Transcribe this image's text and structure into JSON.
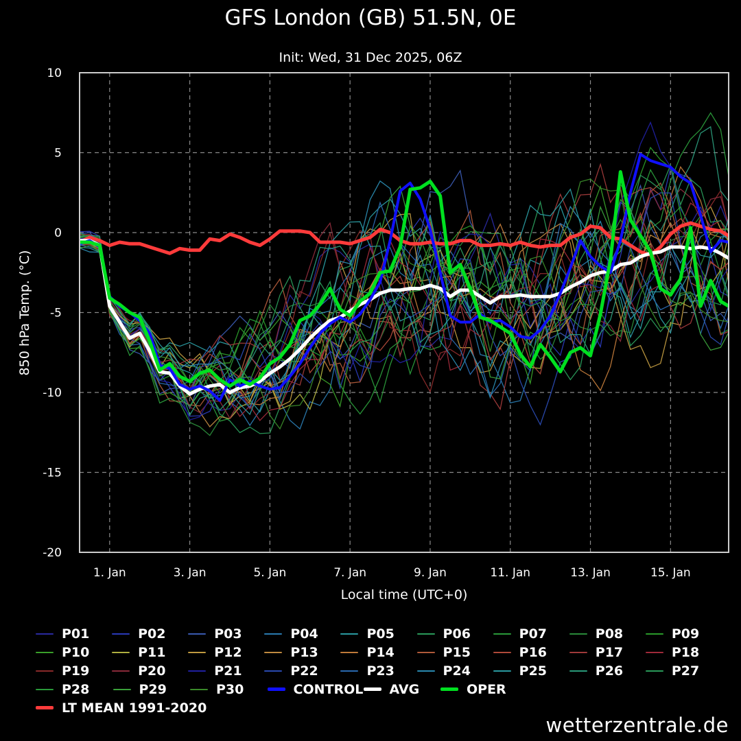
{
  "footer": {
    "site": "wetterzentrale.de"
  },
  "legend": {
    "rows": [
      [
        "P01",
        "P02",
        "P03",
        "P04",
        "P05",
        "P06",
        "P07",
        "P08",
        "P09"
      ],
      [
        "P10",
        "P11",
        "P12",
        "P13",
        "P14",
        "P15",
        "P16",
        "P17",
        "P18"
      ],
      [
        "P19",
        "P20",
        "P21",
        "P22",
        "P23",
        "P24",
        "P25",
        "P26",
        "P27"
      ],
      [
        "P28",
        "P29",
        "P30"
      ]
    ],
    "special": [
      {
        "label": "CONTROL",
        "color": "#1010ff"
      },
      {
        "label": "AVG",
        "color": "#ffffff"
      },
      {
        "label": "OPER",
        "color": "#00e020"
      },
      {
        "label": "LT MEAN 1991-2020",
        "color": "#ff3b3b"
      }
    ],
    "member_colors": {
      "P01": "#2a2aa0",
      "P02": "#2a3ab8",
      "P03": "#3a5ab0",
      "P04": "#2a7ab0",
      "P05": "#2a9aa0",
      "P06": "#2a9a5a",
      "P07": "#2a9a3a",
      "P08": "#2a8a3a",
      "P09": "#2a9a2a",
      "P10": "#3aa02a",
      "P11": "#b0b040",
      "P12": "#c09a40",
      "P13": "#c08a40",
      "P14": "#c07a3a",
      "P15": "#b05a3a",
      "P16": "#b04a3a",
      "P17": "#a03a3a",
      "P18": "#a02a3a",
      "P19": "#8a2a2a",
      "P20": "#8a2a3a",
      "P21": "#2020a0",
      "P22": "#2a4ab0",
      "P23": "#2a6ab0",
      "P24": "#2a8ab0",
      "P25": "#2a9aa0",
      "P26": "#2a9a7a",
      "P27": "#2a9a5a",
      "P28": "#2a9a3a",
      "P29": "#3aa03a",
      "P30": "#3a8a2a"
    }
  },
  "chart_data": {
    "type": "line",
    "title": "GFS London (GB) 51.5N, 0E",
    "subtitle": "Init: Wed, 31 Dec 2025, 06Z",
    "xlabel": "Local time (UTC+0)",
    "ylabel": "850 hPa Temp. (°C)",
    "x_unit": "days since 31 Dec 2025 00Z",
    "xlim": [
      0.25,
      16.45
    ],
    "ylim": [
      -20,
      10
    ],
    "yticks": [
      -20,
      -15,
      -10,
      -5,
      0,
      5,
      10
    ],
    "xticks": [
      {
        "x": 1,
        "label": "1. Jan"
      },
      {
        "x": 3,
        "label": "3. Jan"
      },
      {
        "x": 5,
        "label": "5. Jan"
      },
      {
        "x": 7,
        "label": "7. Jan"
      },
      {
        "x": 9,
        "label": "9. Jan"
      },
      {
        "x": 11,
        "label": "11. Jan"
      },
      {
        "x": 13,
        "label": "13. Jan"
      },
      {
        "x": 15,
        "label": "15. Jan"
      }
    ],
    "grid": true,
    "series": [
      {
        "name": "LT MEAN 1991-2020",
        "color": "#ff3b3b",
        "width": 5,
        "x": [
          0.25,
          0.5,
          0.75,
          1,
          1.25,
          1.5,
          1.75,
          2,
          2.25,
          2.5,
          2.75,
          3,
          3.25,
          3.5,
          3.75,
          4,
          4.25,
          4.5,
          4.75,
          5,
          5.25,
          5.5,
          5.75,
          6,
          6.25,
          6.5,
          6.75,
          7,
          7.25,
          7.5,
          7.75,
          8,
          8.25,
          8.5,
          8.75,
          9,
          9.25,
          9.5,
          9.75,
          10,
          10.25,
          10.5,
          10.75,
          11,
          11.25,
          11.5,
          11.75,
          12,
          12.25,
          12.5,
          12.75,
          13,
          13.25,
          13.5,
          13.75,
          14,
          14.25,
          14.5,
          14.75,
          15,
          15.25,
          15.5,
          15.75,
          16,
          16.25,
          16.45
        ],
        "y": [
          -0.6,
          -0.3,
          -0.5,
          -0.8,
          -0.6,
          -0.7,
          -0.7,
          -0.9,
          -1.1,
          -1.3,
          -1.0,
          -1.1,
          -1.1,
          -0.4,
          -0.5,
          -0.1,
          -0.3,
          -0.6,
          -0.8,
          -0.4,
          0.1,
          0.1,
          0.1,
          0.0,
          -0.6,
          -0.6,
          -0.6,
          -0.7,
          -0.5,
          -0.3,
          0.2,
          0.0,
          -0.5,
          -0.7,
          -0.7,
          -0.6,
          -0.7,
          -0.7,
          -0.5,
          -0.5,
          -0.8,
          -0.8,
          -0.7,
          -0.8,
          -0.6,
          -0.8,
          -0.9,
          -0.8,
          -0.8,
          -0.3,
          -0.1,
          0.4,
          0.3,
          -0.3,
          -0.4,
          -0.8,
          -1.2,
          -1.4,
          -0.9,
          -0.1,
          0.4,
          0.6,
          0.4,
          0.2,
          0.1,
          -0.2
        ]
      },
      {
        "name": "AVG",
        "color": "#ffffff",
        "width": 5,
        "x": [
          0.25,
          0.5,
          0.75,
          1,
          1.25,
          1.5,
          1.75,
          2,
          2.25,
          2.5,
          2.75,
          3,
          3.25,
          3.5,
          3.75,
          4,
          4.25,
          4.5,
          4.75,
          5,
          5.25,
          5.5,
          5.75,
          6,
          6.25,
          6.5,
          6.75,
          7,
          7.25,
          7.5,
          7.75,
          8,
          8.25,
          8.5,
          8.75,
          9,
          9.25,
          9.5,
          9.75,
          10,
          10.25,
          10.5,
          10.75,
          11,
          11.25,
          11.5,
          11.75,
          12,
          12.25,
          12.5,
          12.75,
          13,
          13.25,
          13.5,
          13.75,
          14,
          14.25,
          14.5,
          14.75,
          15,
          15.25,
          15.5,
          15.75,
          16,
          16.25,
          16.45
        ],
        "y": [
          -0.5,
          -0.5,
          -0.8,
          -4.6,
          -5.6,
          -6.6,
          -6.3,
          -7.4,
          -8.7,
          -8.8,
          -9.6,
          -10.1,
          -9.8,
          -9.6,
          -9.5,
          -10.0,
          -9.7,
          -9.6,
          -9.3,
          -8.8,
          -8.4,
          -7.9,
          -7.3,
          -6.6,
          -6.0,
          -5.5,
          -5.3,
          -4.9,
          -4.5,
          -4.2,
          -3.8,
          -3.6,
          -3.6,
          -3.5,
          -3.5,
          -3.3,
          -3.5,
          -4.0,
          -3.6,
          -3.6,
          -4.0,
          -4.4,
          -4.0,
          -4.0,
          -3.9,
          -4.0,
          -4.0,
          -4.0,
          -3.8,
          -3.4,
          -3.1,
          -2.7,
          -2.5,
          -2.4,
          -2.0,
          -1.9,
          -1.5,
          -1.3,
          -1.2,
          -0.9,
          -0.9,
          -1.0,
          -0.9,
          -1.0,
          -1.3,
          -1.6
        ]
      },
      {
        "name": "CONTROL",
        "color": "#1010ff",
        "width": 4,
        "x": [
          0.25,
          0.5,
          0.75,
          1,
          1.25,
          1.5,
          1.75,
          2,
          2.25,
          2.5,
          2.75,
          3,
          3.25,
          3.5,
          3.75,
          4,
          4.25,
          4.5,
          4.75,
          5,
          5.25,
          5.5,
          5.75,
          6,
          6.25,
          6.5,
          6.75,
          7,
          7.25,
          7.5,
          7.75,
          8,
          8.25,
          8.5,
          8.75,
          9,
          9.25,
          9.5,
          9.75,
          10,
          10.25,
          10.5,
          10.75,
          11,
          11.25,
          11.5,
          11.75,
          12,
          12.25,
          12.5,
          12.75,
          13,
          13.25,
          13.5,
          13.75,
          14,
          14.25,
          14.5,
          14.75,
          15,
          15.25,
          15.5,
          15.75,
          16,
          16.25,
          16.45
        ],
        "y": [
          -0.7,
          -0.5,
          -0.9,
          -4.0,
          -4.6,
          -5.0,
          -5.5,
          -6.3,
          -8.3,
          -8.5,
          -9.5,
          -9.8,
          -9.6,
          -9.9,
          -10.5,
          -9.2,
          -9.6,
          -9.3,
          -9.6,
          -9.8,
          -9.7,
          -9.0,
          -8.2,
          -7.2,
          -6.3,
          -5.7,
          -5.3,
          -5.6,
          -5.1,
          -4.2,
          -3.1,
          -0.5,
          2.6,
          3.1,
          2.1,
          0.2,
          -2.5,
          -5.2,
          -5.6,
          -5.6,
          -5.1,
          -5.6,
          -5.5,
          -5.9,
          -6.5,
          -6.6,
          -6.1,
          -5.2,
          -3.8,
          -2.2,
          -0.5,
          -1.5,
          -2.1,
          -2.5,
          -0.5,
          2.5,
          4.9,
          4.5,
          4.3,
          4.1,
          3.5,
          3.1,
          1.1,
          -1.2,
          -0.5,
          -0.6
        ]
      },
      {
        "name": "OPER",
        "color": "#00e020",
        "width": 5,
        "x": [
          0.25,
          0.5,
          0.75,
          1,
          1.25,
          1.5,
          1.75,
          2,
          2.25,
          2.5,
          2.75,
          3,
          3.25,
          3.5,
          3.75,
          4,
          4.25,
          4.5,
          4.75,
          5,
          5.25,
          5.5,
          5.75,
          6,
          6.25,
          6.5,
          6.75,
          7,
          7.25,
          7.5,
          7.75,
          8,
          8.25,
          8.5,
          8.75,
          9,
          9.25,
          9.5,
          9.75,
          10,
          10.25,
          10.5,
          10.75,
          11,
          11.25,
          11.5,
          11.75,
          12,
          12.25,
          12.5,
          12.75,
          13,
          13.25,
          13.5,
          13.75,
          14,
          14.25,
          14.5,
          14.75,
          15,
          15.25,
          15.5,
          15.75,
          16,
          16.25,
          16.45
        ],
        "y": [
          -0.6,
          -0.6,
          -0.8,
          -4.1,
          -4.5,
          -5.0,
          -5.3,
          -6.8,
          -8.6,
          -8.2,
          -9.0,
          -9.3,
          -8.8,
          -8.6,
          -9.2,
          -9.6,
          -9.2,
          -9.5,
          -9.1,
          -8.2,
          -7.8,
          -7.0,
          -5.5,
          -5.2,
          -4.5,
          -3.5,
          -4.8,
          -5.2,
          -4.3,
          -3.8,
          -2.5,
          -2.4,
          -0.9,
          2.7,
          2.8,
          3.2,
          2.3,
          -2.5,
          -2.0,
          -3.5,
          -5.3,
          -5.5,
          -5.9,
          -6.3,
          -7.6,
          -8.4,
          -7.0,
          -7.8,
          -8.7,
          -7.5,
          -7.2,
          -7.7,
          -5.1,
          -1.7,
          3.8,
          0.8,
          -0.2,
          -1.2,
          -3.5,
          -3.9,
          -2.9,
          0.3,
          -4.6,
          -3.0,
          -4.3,
          -4.6
        ]
      }
    ]
  }
}
